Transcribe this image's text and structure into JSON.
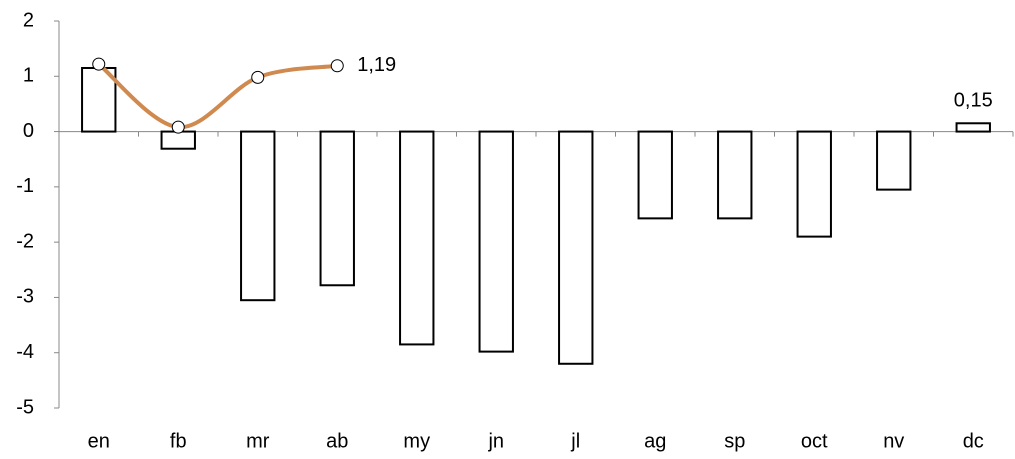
{
  "chart_data": {
    "type": "bar",
    "categories": [
      "en",
      "fb",
      "mr",
      "ab",
      "my",
      "jn",
      "jl",
      "ag",
      "sp",
      "oct",
      "nv",
      "dc"
    ],
    "series": [
      {
        "type": "bar",
        "color": "#ffffff",
        "stroke": "#000000",
        "values": [
          1.15,
          -0.31,
          -3.05,
          -2.78,
          -3.85,
          -3.98,
          -4.2,
          -1.57,
          -1.57,
          -1.9,
          -1.05,
          0.15
        ],
        "value_labels": [
          null,
          null,
          null,
          null,
          null,
          null,
          null,
          null,
          null,
          null,
          null,
          "0,15"
        ]
      },
      {
        "type": "line",
        "color": "#d08a4f",
        "smooth": true,
        "values": [
          1.22,
          0.08,
          0.98,
          1.19,
          null,
          null,
          null,
          null,
          null,
          null,
          null,
          null
        ],
        "value_labels": [
          null,
          null,
          null,
          "1,19"
        ]
      }
    ],
    "ylim": [
      -5,
      2
    ],
    "yticks": [
      -5,
      -4,
      -3,
      -2,
      -1,
      0,
      1,
      2
    ],
    "grid": false
  }
}
